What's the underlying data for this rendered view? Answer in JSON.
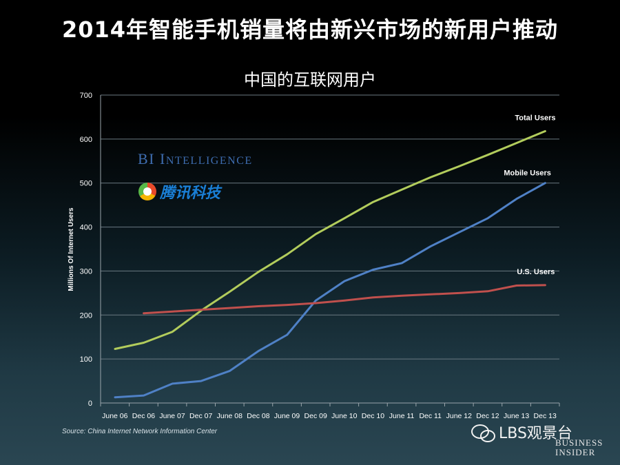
{
  "slide": {
    "headline": "2014年智能手机销量将由新兴市场的新用户推动",
    "source": "Source: China Internet Network Information Center"
  },
  "logos": {
    "bi_intelligence": "BI Intelligence",
    "bi_intelligence_first": "BI",
    "bi_intelligence_rest_initial": "I",
    "bi_intelligence_rest_smallcaps": "NTELLIGENCE",
    "tencent_tech": "腾讯科技",
    "watermark": "LBS观景台",
    "business_insider_line1": "BUSINESS",
    "business_insider_line2": "INSIDER"
  },
  "colors": {
    "total_users": "#b2cc5c",
    "mobile_users": "#4f81c6",
    "us_users": "#c0504d",
    "grid": "#6b7a82",
    "axis_text": "#ffffff"
  },
  "chart_data": {
    "type": "line",
    "title": "中国的互联网用户",
    "xlabel": "",
    "ylabel": "Millions Of Internet Users",
    "ylim": [
      0,
      700
    ],
    "yticks": [
      0,
      100,
      200,
      300,
      400,
      500,
      600,
      700
    ],
    "grid": true,
    "categories": [
      "June 06",
      "Dec 06",
      "June 07",
      "Dec 07",
      "June 08",
      "Dec 08",
      "June 09",
      "Dec 09",
      "June 10",
      "Dec 10",
      "June 11",
      "Dec 11",
      "June 12",
      "Dec 12",
      "June 13",
      "Dec 13"
    ],
    "series": [
      {
        "name": "Total Users",
        "color": "#b2cc5c",
        "x": [
          0,
          1,
          2,
          3,
          4,
          5,
          6,
          7,
          8,
          9,
          10,
          11,
          12,
          13,
          14,
          15
        ],
        "values": [
          123,
          137,
          162,
          210,
          253,
          298,
          338,
          384,
          420,
          457,
          485,
          513,
          538,
          564,
          591,
          618
        ]
      },
      {
        "name": "Mobile Users",
        "color": "#4f81c6",
        "x": [
          0,
          1,
          2,
          3,
          4,
          5,
          6,
          7,
          8,
          9,
          10,
          11,
          12,
          13,
          14,
          15
        ],
        "values": [
          13,
          17,
          44,
          50,
          73,
          118,
          155,
          233,
          277,
          303,
          318,
          356,
          388,
          420,
          464,
          500
        ]
      },
      {
        "name": "U.S. Users",
        "color": "#c0504d",
        "x": [
          1,
          2,
          3,
          4,
          5,
          6,
          7,
          8,
          9,
          10,
          11,
          12,
          13,
          14,
          15
        ],
        "values": [
          204,
          208,
          212,
          216,
          220,
          223,
          227,
          233,
          240,
          244,
          247,
          250,
          254,
          267,
          268
        ]
      }
    ]
  }
}
